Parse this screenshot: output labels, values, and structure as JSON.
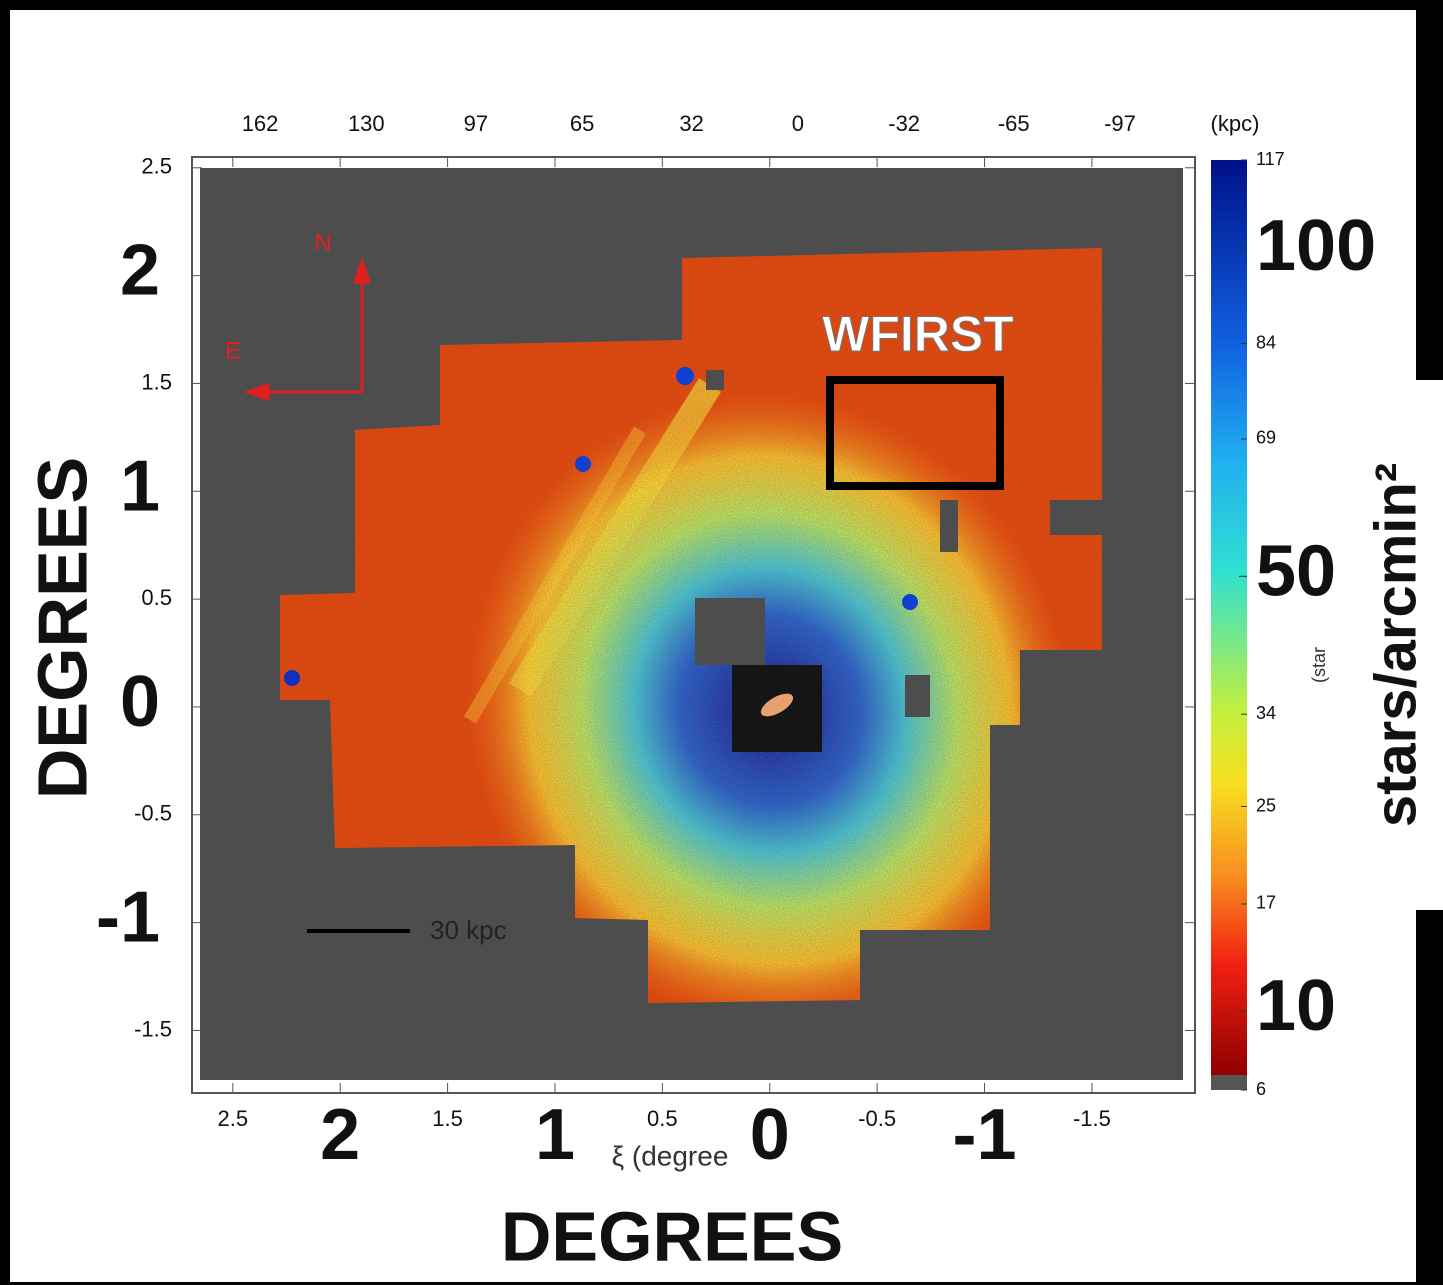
{
  "chart_data": {
    "type": "density-map",
    "xlabel": "ξ (degree",
    "xtitle": "DEGREES",
    "ytitle": "DEGREES",
    "xlim": [
      2.69,
      -1.98
    ],
    "ylim": [
      -1.79,
      2.55
    ],
    "xticks": [
      2.5,
      2,
      1.5,
      1,
      0.5,
      0,
      -0.5,
      -1,
      -1.5
    ],
    "yticks": [
      2.5,
      2,
      1.5,
      1,
      0.5,
      0,
      -0.5,
      -1,
      -1.5
    ],
    "x2lim": [
      182.5,
      -119.6
    ],
    "x2ticks": [
      162,
      130,
      97,
      65,
      32,
      0,
      -32,
      -65,
      -97
    ],
    "x2label": "(kpc)",
    "colorbar": {
      "lim": [
        6,
        117
      ],
      "scale": "sqrt",
      "ticks": [
        117,
        84,
        69,
        34,
        25,
        17,
        6
      ],
      "major_ticks": [
        100,
        50,
        10
      ],
      "label": "stars/arcmin²",
      "sublabel": "(star"
    },
    "annotations": {
      "box": "WFIRST",
      "north": "N",
      "east": "E",
      "scale_bar": "30 kpc"
    }
  }
}
